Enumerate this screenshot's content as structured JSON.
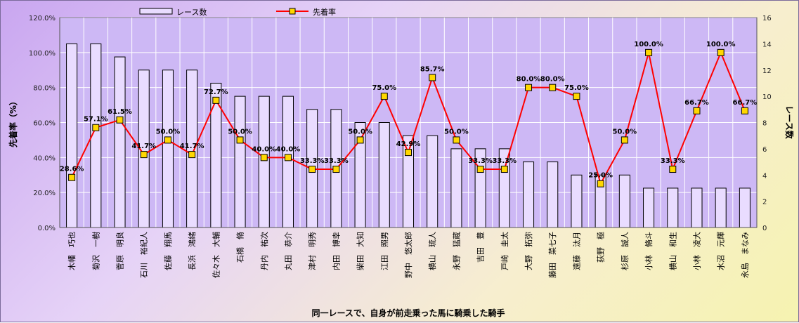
{
  "chart_data": {
    "type": "bar",
    "categories": [
      "木幡　巧也",
      "菊沢　一樹",
      "菅原　明良",
      "石川　裕紀人",
      "佐藤　翔馬",
      "長浜　鴻緒",
      "佐々木　大輔",
      "石橋　脩",
      "丹内　祐次",
      "丸田　恭介",
      "津村　明秀",
      "内田　博幸",
      "柴田　大知",
      "江田　照男",
      "野中　悠太郎",
      "横山　琉人",
      "永野　猛蔵",
      "吉田　豊",
      "戸崎　圭太",
      "大野　拓弥",
      "藤田　菜七子",
      "遠藤　汰月",
      "荻野　極",
      "杉原　誠人",
      "小林　脩斗",
      "横山　和生",
      "小林　凌大",
      "水沼　元輝",
      "永島　まなみ"
    ],
    "series": [
      {
        "name": "レース数",
        "type": "bar",
        "axis": "right",
        "values": [
          14,
          14,
          13,
          12,
          12,
          12,
          11,
          10,
          10,
          10,
          9,
          9,
          8,
          8,
          7,
          7,
          6,
          6,
          6,
          5,
          5,
          4,
          4,
          4,
          3,
          3,
          3,
          3,
          3
        ]
      },
      {
        "name": "先着率",
        "type": "line",
        "axis": "left",
        "values": [
          28.6,
          57.1,
          61.5,
          41.7,
          50.0,
          41.7,
          72.7,
          50.0,
          40.0,
          40.0,
          33.3,
          33.3,
          50.0,
          75.0,
          42.9,
          85.7,
          50.0,
          33.3,
          33.3,
          80.0,
          80.0,
          75.0,
          25.0,
          50.0,
          100.0,
          33.3,
          66.7,
          100.0,
          66.7
        ],
        "labels": [
          "28.6%",
          "57.1%",
          "61.5%",
          "41.7%",
          "50.0%",
          "41.7%",
          "72.7%",
          "50.0%",
          "40.0%",
          "40.0%",
          "33.3%",
          "33.3%",
          "50.0%",
          "75.0%",
          "42.9%",
          "85.7%",
          "50.0%",
          "33.3%",
          "33.3%",
          "80.0%",
          "80.0%",
          "75.0%",
          "25.0%",
          "50.0%",
          "100.0%",
          "33.3%",
          "66.7%",
          "100.0%",
          "66.7%"
        ]
      }
    ],
    "xlabel": "同一レースで、自身が前走乗った馬に騎乗した騎手",
    "ylabel": "先着率（%）",
    "y2label": "レース数",
    "ylim": [
      0,
      120
    ],
    "y2lim": [
      0,
      16
    ],
    "y_ticks": [
      "0.0%",
      "20.0%",
      "40.0%",
      "60.0%",
      "80.0%",
      "100.0%",
      "120.0%"
    ],
    "y2_ticks": [
      "0",
      "2",
      "4",
      "6",
      "8",
      "10",
      "12",
      "14",
      "16"
    ],
    "legend": [
      "レース数",
      "先着率"
    ],
    "legend_position": "top",
    "grid": true,
    "colors": {
      "bar_fill": "#e9dcff",
      "bar_stroke": "#000000",
      "line": "#ff0000",
      "marker": "#ffd700",
      "plot_bg": "#cdb8f5",
      "grid": "#ffffff"
    }
  }
}
